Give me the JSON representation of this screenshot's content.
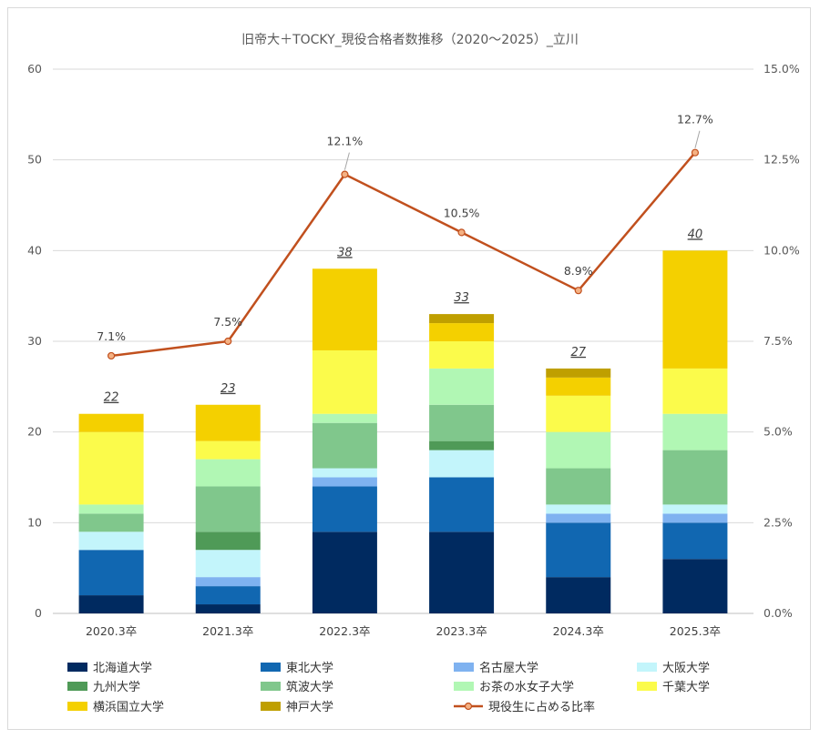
{
  "chart_data": {
    "type": "bar",
    "stacked": true,
    "title": "旧帝大＋TOCKY_現役合格者数推移（2020～2025）_立川",
    "categories": [
      "2020.3卒",
      "2021.3卒",
      "2022.3卒",
      "2023.3卒",
      "2024.3卒",
      "2025.3卒"
    ],
    "ylim": [
      0,
      60
    ],
    "yticks": [
      "0",
      "10",
      "20",
      "30",
      "40",
      "50",
      "60"
    ],
    "y2lim": [
      0,
      15
    ],
    "y2ticks": [
      "0.0%",
      "2.5%",
      "5.0%",
      "7.5%",
      "10.0%",
      "12.5%",
      "15.0%"
    ],
    "series": [
      {
        "name": "北海道大学",
        "color": "#002a60",
        "values": [
          2,
          1,
          9,
          9,
          4,
          6
        ]
      },
      {
        "name": "東北大学",
        "color": "#1167b1",
        "values": [
          5,
          2,
          5,
          6,
          6,
          4
        ]
      },
      {
        "name": "名古屋大学",
        "color": "#7fb2f0",
        "values": [
          0,
          1,
          1,
          0,
          1,
          1
        ]
      },
      {
        "name": "大阪大学",
        "color": "#c3f5fb",
        "values": [
          2,
          3,
          1,
          3,
          1,
          1
        ]
      },
      {
        "name": "九州大学",
        "color": "#4f9a57",
        "values": [
          0,
          2,
          0,
          1,
          0,
          0
        ]
      },
      {
        "name": "筑波大学",
        "color": "#80c78c",
        "values": [
          2,
          5,
          5,
          4,
          4,
          6
        ]
      },
      {
        "name": "お茶の水女子大学",
        "color": "#b1f7b4",
        "values": [
          1,
          3,
          1,
          4,
          4,
          4
        ]
      },
      {
        "name": "千葉大学",
        "color": "#fbfb4b",
        "values": [
          8,
          2,
          7,
          3,
          4,
          5
        ]
      },
      {
        "name": "横浜国立大学",
        "color": "#f4d000",
        "values": [
          2,
          4,
          9,
          2,
          2,
          13
        ]
      },
      {
        "name": "神戸大学",
        "color": "#bf9f00",
        "values": [
          0,
          0,
          0,
          1,
          1,
          0
        ]
      }
    ],
    "totals": [
      "22",
      "23",
      "38",
      "33",
      "27",
      "40"
    ],
    "line": {
      "name": "現役生に占める比率",
      "color": "#c1501e",
      "values": [
        7.1,
        7.5,
        12.1,
        10.5,
        8.9,
        12.7
      ],
      "labels": [
        "7.1%",
        "7.5%",
        "12.1%",
        "10.5%",
        "8.9%",
        "12.7%"
      ]
    }
  }
}
